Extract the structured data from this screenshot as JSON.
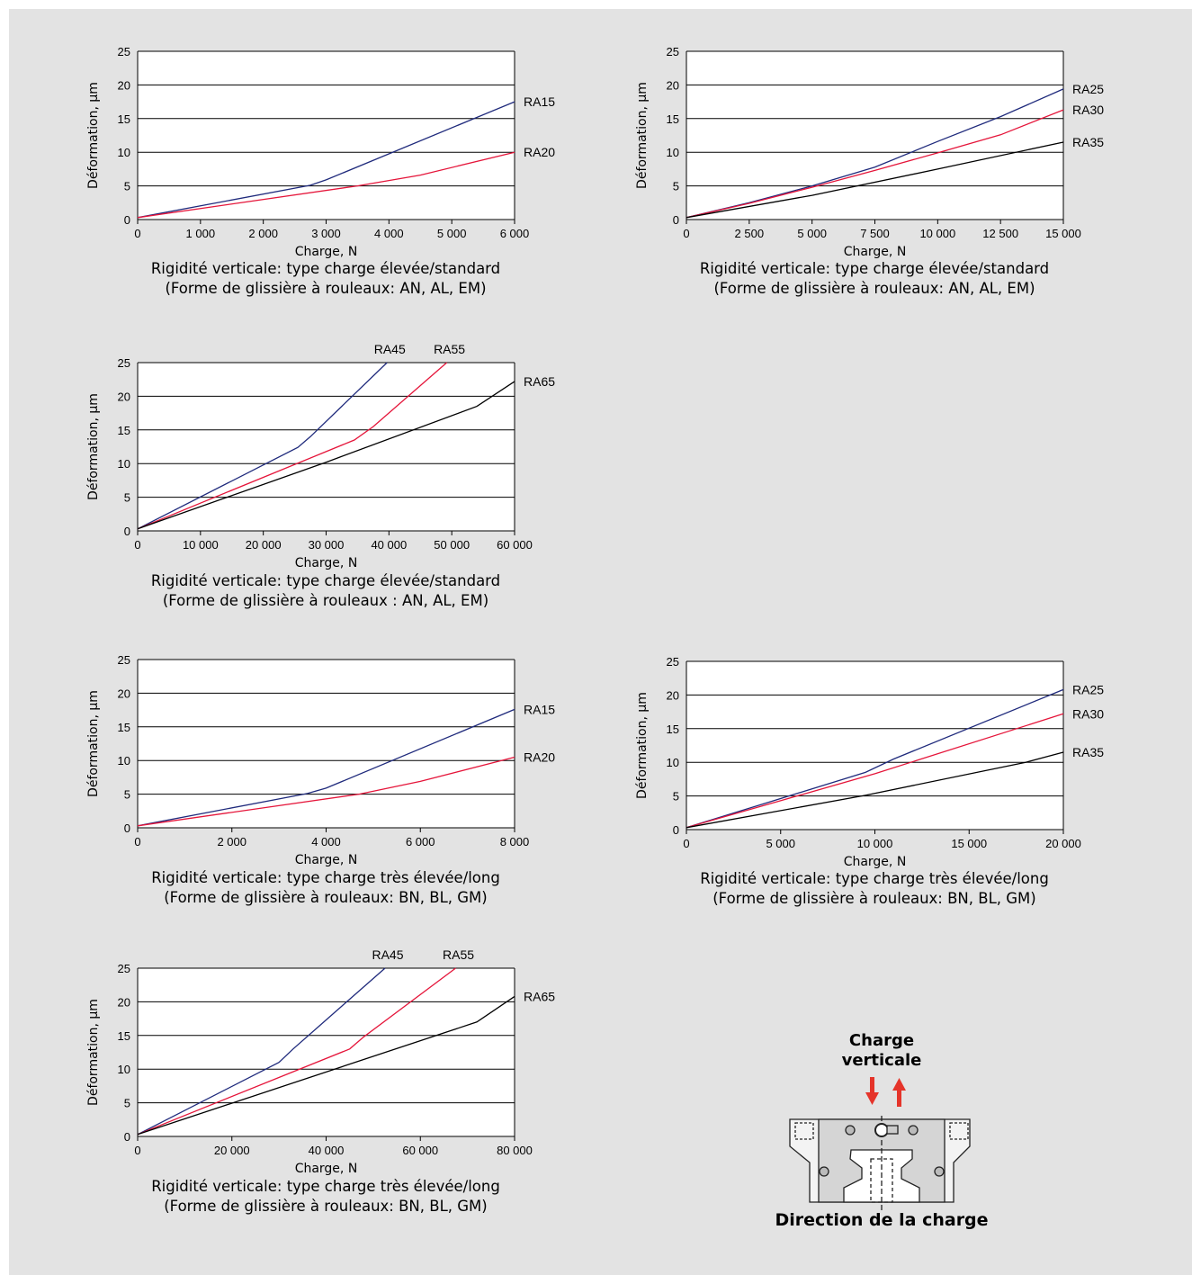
{
  "chart_data": [
    {
      "type": "line",
      "xlabel": "Charge, N",
      "ylabel": "Déformation, µm",
      "xlim": [
        0,
        6000
      ],
      "ylim": [
        0,
        25
      ],
      "x_ticks": [
        0,
        1000,
        2000,
        3000,
        4000,
        5000,
        6000
      ],
      "x_tick_labels": [
        "0",
        "1 000",
        "2 000",
        "3 000",
        "4 000",
        "5 000",
        "6 000"
      ],
      "y_ticks": [
        0,
        5,
        10,
        15,
        20,
        25
      ],
      "y_tick_labels": [
        "0",
        "5",
        "10",
        "15",
        "20",
        "25"
      ],
      "grid": "horizontal",
      "caption": [
        "Rigidité verticale: type charge élevée/standard",
        "(Forme de glissière à rouleaux: AN, AL, EM)"
      ],
      "series": [
        {
          "name": "RA15",
          "color": "#1f2a7c",
          "points": [
            [
              0,
              0.3
            ],
            [
              2750,
              5.1
            ],
            [
              3000,
              5.9
            ],
            [
              6000,
              17.5
            ]
          ],
          "label_at": "right"
        },
        {
          "name": "RA20",
          "color": "#e5153a",
          "points": [
            [
              0,
              0.3
            ],
            [
              3500,
              5.0
            ],
            [
              4500,
              6.6
            ],
            [
              6000,
              10.0
            ]
          ],
          "label_at": "right"
        }
      ]
    },
    {
      "type": "line",
      "xlabel": "Charge, N",
      "ylabel": "Déformation, µm",
      "xlim": [
        0,
        15000
      ],
      "ylim": [
        0,
        25
      ],
      "x_ticks": [
        0,
        2500,
        5000,
        7500,
        10000,
        12500,
        15000
      ],
      "x_tick_labels": [
        "0",
        "2 500",
        "5 000",
        "7 500",
        "10 000",
        "12 500",
        "15 000"
      ],
      "y_ticks": [
        0,
        5,
        10,
        15,
        20,
        25
      ],
      "y_tick_labels": [
        "0",
        "5",
        "10",
        "15",
        "20",
        "25"
      ],
      "grid": "horizontal",
      "caption": [
        "Rigidité verticale: type charge élevée/standard",
        "(Forme de glissière à rouleaux: AN, AL, EM)"
      ],
      "series": [
        {
          "name": "RA25",
          "color": "#1f2a7c",
          "points": [
            [
              0,
              0.3
            ],
            [
              2500,
              2.5
            ],
            [
              5000,
              5.0
            ],
            [
              7500,
              7.8
            ],
            [
              10000,
              11.6
            ],
            [
              12500,
              15.3
            ],
            [
              15000,
              19.4
            ]
          ],
          "label_at": "right"
        },
        {
          "name": "RA30",
          "color": "#e5153a",
          "points": [
            [
              0,
              0.3
            ],
            [
              2500,
              2.4
            ],
            [
              5000,
              4.8
            ],
            [
              7500,
              7.3
            ],
            [
              10000,
              9.9
            ],
            [
              12500,
              12.6
            ],
            [
              15000,
              16.3
            ]
          ],
          "label_at": "right"
        },
        {
          "name": "RA35",
          "color": "#000000",
          "points": [
            [
              0,
              0.3
            ],
            [
              5000,
              3.6
            ],
            [
              10000,
              7.5
            ],
            [
              15000,
              11.5
            ]
          ],
          "label_at": "right"
        }
      ]
    },
    {
      "type": "line",
      "xlabel": "Charge, N",
      "ylabel": "Déformation, µm",
      "xlim": [
        0,
        60000
      ],
      "ylim": [
        0,
        25
      ],
      "x_ticks": [
        0,
        10000,
        20000,
        30000,
        40000,
        50000,
        60000
      ],
      "x_tick_labels": [
        "0",
        "10 000",
        "20 000",
        "30 000",
        "40 000",
        "50 000",
        "60 000"
      ],
      "y_ticks": [
        0,
        5,
        10,
        15,
        20,
        25
      ],
      "y_tick_labels": [
        "0",
        "5",
        "10",
        "15",
        "20",
        "25"
      ],
      "grid": "horizontal",
      "caption": [
        "Rigidité verticale: type charge élevée/standard",
        "(Forme de glissière à rouleaux : AN, AL, EM)"
      ],
      "series": [
        {
          "name": "RA45",
          "color": "#1f2a7c",
          "points": [
            [
              0,
              0.3
            ],
            [
              25500,
              12.4
            ],
            [
              27500,
              14.0
            ],
            [
              39700,
              25.0
            ]
          ],
          "label_at": "top"
        },
        {
          "name": "RA55",
          "color": "#e5153a",
          "points": [
            [
              0,
              0.3
            ],
            [
              34500,
              13.5
            ],
            [
              37500,
              15.5
            ],
            [
              49200,
              25.0
            ]
          ],
          "label_at": "top"
        },
        {
          "name": "RA65",
          "color": "#000000",
          "points": [
            [
              0,
              0.3
            ],
            [
              30000,
              10.2
            ],
            [
              54000,
              18.5
            ],
            [
              60000,
              22.2
            ]
          ],
          "label_at": "right"
        }
      ]
    },
    {
      "type": "line",
      "xlabel": "Charge, N",
      "ylabel": "Déformation, µm",
      "xlim": [
        0,
        8000
      ],
      "ylim": [
        0,
        25
      ],
      "x_ticks": [
        0,
        2000,
        4000,
        6000,
        8000
      ],
      "x_tick_labels": [
        "0",
        "2 000",
        "4 000",
        "6 000",
        "8 000"
      ],
      "y_ticks": [
        0,
        5,
        10,
        15,
        20,
        25
      ],
      "y_tick_labels": [
        "0",
        "5",
        "10",
        "15",
        "20",
        "25"
      ],
      "grid": "horizontal",
      "caption": [
        "Rigidité verticale: type charge très élevée/long",
        "(Forme de glissière à rouleaux: BN, BL, GM)"
      ],
      "series": [
        {
          "name": "RA15",
          "color": "#1f2a7c",
          "points": [
            [
              0,
              0.3
            ],
            [
              3600,
              5.1
            ],
            [
              4000,
              5.9
            ],
            [
              8000,
              17.6
            ]
          ],
          "label_at": "right"
        },
        {
          "name": "RA20",
          "color": "#e5153a",
          "points": [
            [
              0,
              0.3
            ],
            [
              4700,
              5.0
            ],
            [
              6000,
              6.9
            ],
            [
              8000,
              10.5
            ]
          ],
          "label_at": "right"
        }
      ]
    },
    {
      "type": "line",
      "xlabel": "Charge, N",
      "ylabel": "Déformation, µm",
      "xlim": [
        0,
        20000
      ],
      "ylim": [
        0,
        25
      ],
      "x_ticks": [
        0,
        5000,
        10000,
        15000,
        20000
      ],
      "x_tick_labels": [
        "0",
        "5 000",
        "10 000",
        "15 000",
        "20 000"
      ],
      "y_ticks": [
        0,
        5,
        10,
        15,
        20,
        25
      ],
      "y_tick_labels": [
        "0",
        "5",
        "10",
        "15",
        "20",
        "25"
      ],
      "grid": "horizontal",
      "caption": [
        "Rigidité verticale: type charge très élevée/long",
        "(Forme de glissière à rouleaux: BN, BL, GM)"
      ],
      "series": [
        {
          "name": "RA25",
          "color": "#1f2a7c",
          "points": [
            [
              0,
              0.3
            ],
            [
              9500,
              8.5
            ],
            [
              11000,
              10.5
            ],
            [
              20000,
              20.8
            ]
          ],
          "label_at": "right"
        },
        {
          "name": "RA30",
          "color": "#e5153a",
          "points": [
            [
              0,
              0.3
            ],
            [
              10000,
              8.3
            ],
            [
              20000,
              17.2
            ]
          ],
          "label_at": "right"
        },
        {
          "name": "RA35",
          "color": "#000000",
          "points": [
            [
              0,
              0.3
            ],
            [
              9500,
              5.1
            ],
            [
              18000,
              10.0
            ],
            [
              20000,
              11.5
            ]
          ],
          "label_at": "right"
        }
      ]
    },
    {
      "type": "line",
      "xlabel": "Charge, N",
      "ylabel": "Déformation, µm",
      "xlim": [
        0,
        80000
      ],
      "ylim": [
        0,
        25
      ],
      "x_ticks": [
        0,
        20000,
        40000,
        60000,
        80000
      ],
      "x_tick_labels": [
        "0",
        "20 000",
        "40 000",
        "60 000",
        "80 000"
      ],
      "y_ticks": [
        0,
        5,
        10,
        15,
        20,
        25
      ],
      "y_tick_labels": [
        "0",
        "5",
        "10",
        "15",
        "20",
        "25"
      ],
      "grid": "horizontal",
      "caption": [
        "Rigidité verticale: type charge très élevée/long",
        "(Forme de glissière à rouleaux: BN, BL, GM)"
      ],
      "series": [
        {
          "name": "RA45",
          "color": "#1f2a7c",
          "points": [
            [
              0,
              0.3
            ],
            [
              30000,
              11.0
            ],
            [
              33000,
              13.0
            ],
            [
              52500,
              25.0
            ]
          ],
          "label_at": "top"
        },
        {
          "name": "RA55",
          "color": "#e5153a",
          "points": [
            [
              0,
              0.3
            ],
            [
              45000,
              13.0
            ],
            [
              48000,
              14.8
            ],
            [
              67500,
              25.0
            ]
          ],
          "label_at": "top"
        },
        {
          "name": "RA65",
          "color": "#000000",
          "points": [
            [
              0,
              0.3
            ],
            [
              72000,
              17.0
            ],
            [
              80000,
              20.8
            ]
          ],
          "label_at": "right"
        }
      ]
    }
  ],
  "diagram": {
    "title": [
      "Charge",
      "verticale"
    ],
    "caption": "Direction de la charge",
    "arrow_color": "#e5342a"
  }
}
